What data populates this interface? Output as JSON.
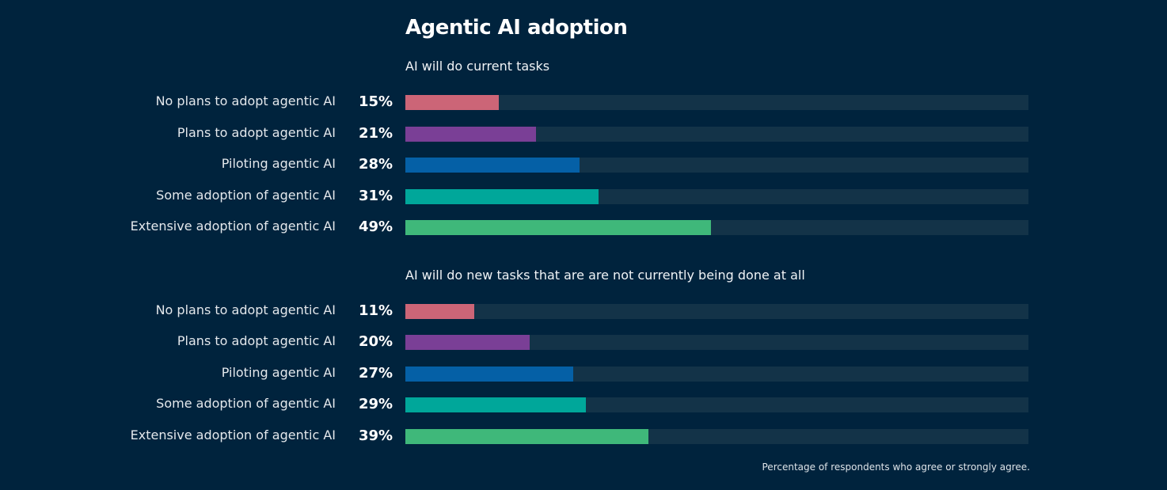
{
  "chart_data": {
    "type": "bar",
    "orientation": "horizontal",
    "title": "Agentic AI adoption",
    "xlim": [
      0,
      100
    ],
    "grid": false,
    "footnote": "Percentage of respondents who agree or strongly agree.",
    "colors": [
      "#cc6577",
      "#7a3f96",
      "#0560a6",
      "#00a79a",
      "#3fb87a"
    ],
    "track_color": "#133348",
    "groups": [
      {
        "subtitle": "AI will do current tasks",
        "categories": [
          "No plans to adopt agentic AI",
          "Plans to  adopt agentic AI",
          "Piloting agentic AI",
          "Some adoption of agentic AI",
          "Extensive adoption of agentic AI"
        ],
        "values": [
          15,
          21,
          28,
          31,
          49
        ],
        "labels": [
          "15%",
          "21%",
          "28%",
          "31%",
          "49%"
        ]
      },
      {
        "subtitle": "AI will do new tasks that are are not currently being done at all",
        "categories": [
          "No plans to adopt agentic AI",
          "Plans to  adopt agentic AI",
          "Piloting agentic AI",
          "Some adoption of agentic AI",
          "Extensive adoption of agentic AI"
        ],
        "values": [
          11,
          20,
          27,
          29,
          39
        ],
        "labels": [
          "11%",
          "20%",
          "27%",
          "29%",
          "39%"
        ]
      }
    ]
  }
}
